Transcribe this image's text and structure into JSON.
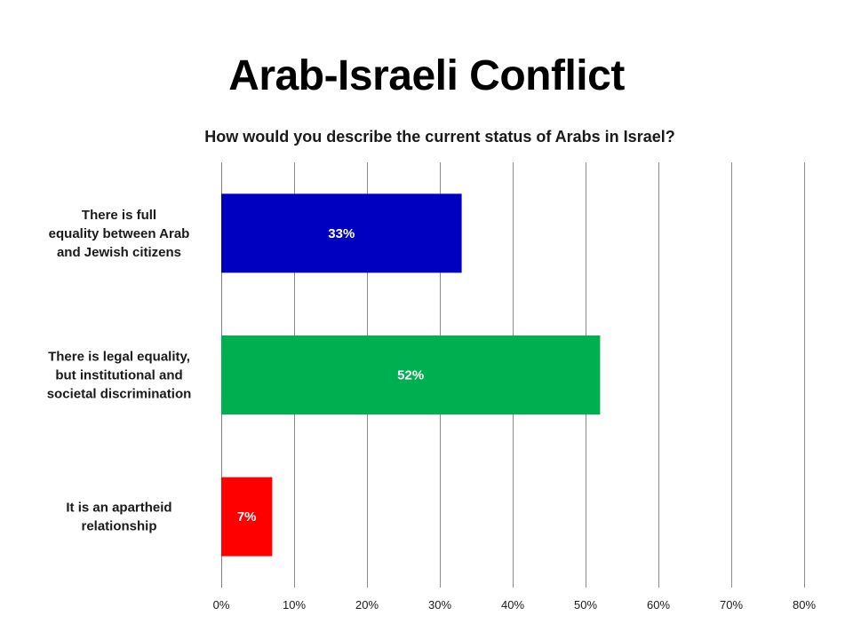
{
  "slide": {
    "title": "Arab-Israeli Conflict"
  },
  "chart_data": {
    "type": "bar",
    "orientation": "horizontal",
    "title": "How would you describe the current status of Arabs in Israel?",
    "categories": [
      [
        "There is full",
        "equality between Arab",
        "and Jewish citizens"
      ],
      [
        "There is legal equality,",
        "but institutional and",
        "societal discrimination"
      ],
      [
        "It is an apartheid",
        "relationship"
      ]
    ],
    "values": [
      33,
      52,
      7
    ],
    "value_labels": [
      "33%",
      "52%",
      "7%"
    ],
    "bar_colors": [
      "#0000C0",
      "#00B050",
      "#FF0000"
    ],
    "xlim": [
      0,
      80
    ],
    "xticks": [
      "0%",
      "10%",
      "20%",
      "30%",
      "40%",
      "50%",
      "60%",
      "70%",
      "80%"
    ],
    "xtick_values": [
      0,
      10,
      20,
      30,
      40,
      50,
      60,
      70,
      80
    ],
    "grid": "vertical",
    "legend": "none",
    "xlabel": "",
    "ylabel": ""
  }
}
